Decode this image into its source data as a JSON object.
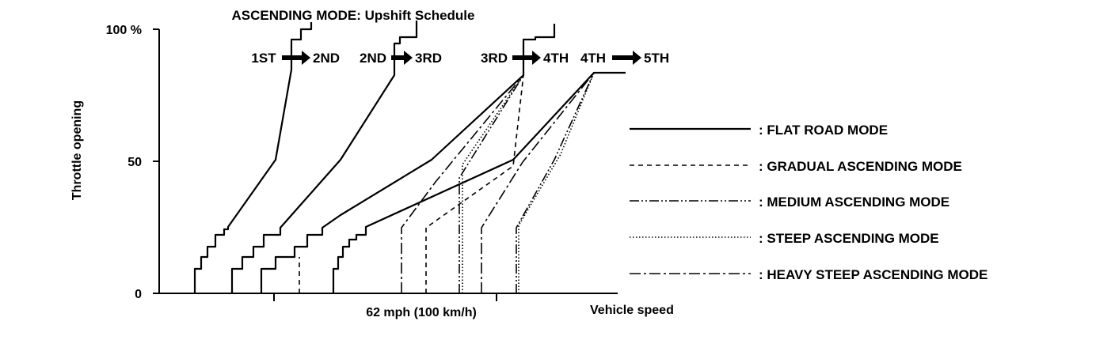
{
  "chart_data": {
    "type": "line",
    "title": "ASCENDING MODE: Upshift Schedule",
    "xlabel": "Vehicle speed",
    "ylabel": "Throttle opening",
    "x_tick_labels": [
      "62 mph (100 km/h)"
    ],
    "y_tick_labels": [
      "100 %",
      "50",
      "0"
    ],
    "ylim": [
      0,
      100
    ],
    "grid": false,
    "shift_labels": [
      {
        "from": "1ST",
        "to": "2ND"
      },
      {
        "from": "2ND",
        "to": "3RD"
      },
      {
        "from": "3RD",
        "to": "4TH"
      },
      {
        "from": "4TH",
        "to": "5TH"
      }
    ],
    "series": [
      {
        "name": ": FLAT ROAD MODE",
        "style": "solid"
      },
      {
        "name": ": GRADUAL ASCENDING MODE",
        "style": "dashed"
      },
      {
        "name": ": MEDIUM ASCENDING MODE",
        "style": "dash-dot-dot"
      },
      {
        "name": ": STEEP ASCENDING MODE",
        "style": "dotted"
      },
      {
        "name": ": HEAVY STEEP ASCENDING MODE",
        "style": "dash-dot"
      }
    ],
    "legend_position": "right"
  }
}
